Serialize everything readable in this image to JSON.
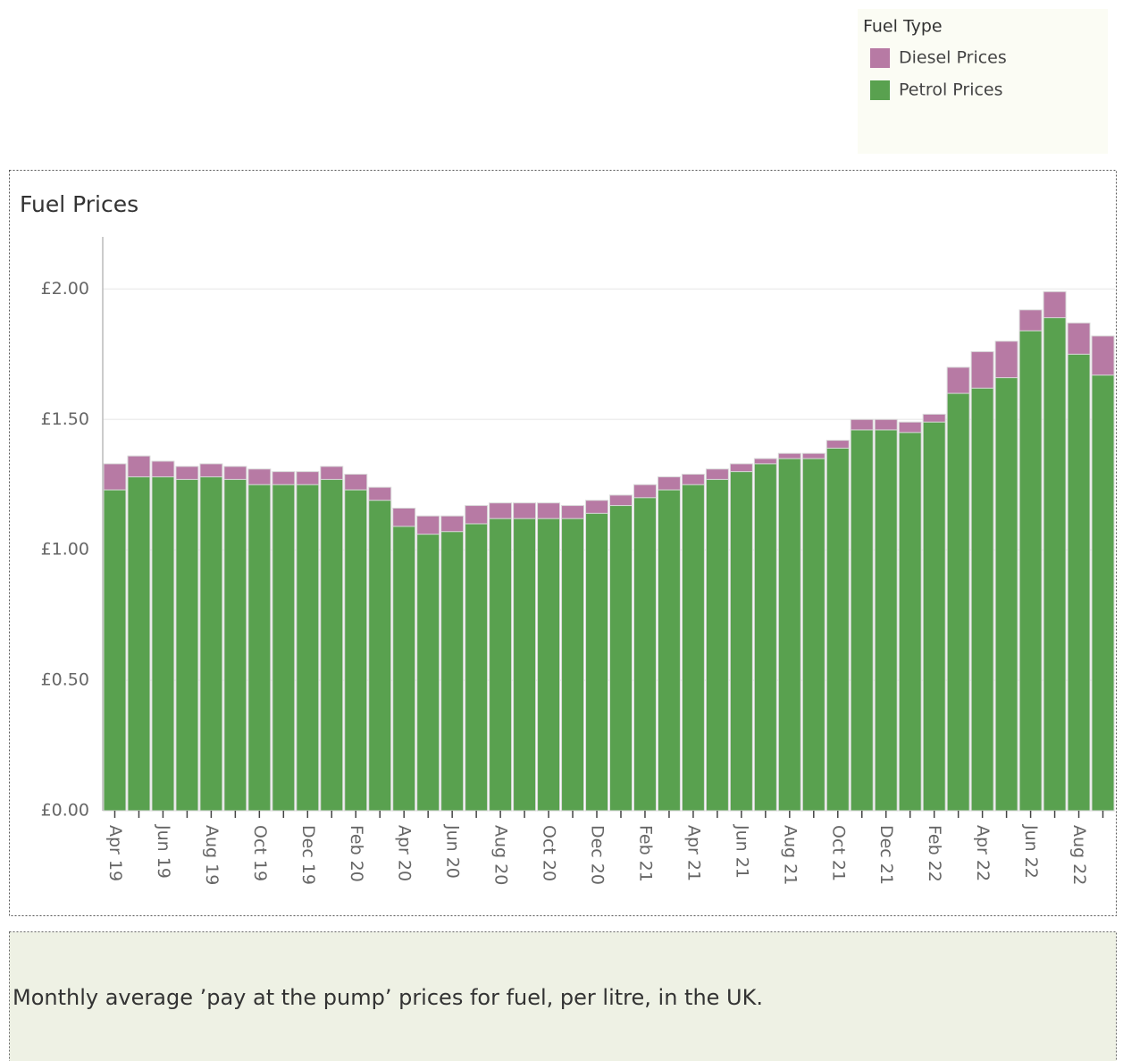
{
  "chart_data": {
    "type": "bar",
    "title": "Fuel Prices",
    "legend_title": "Fuel Type",
    "caption": "Monthly average ’pay at the pump’ prices for fuel, per litre, in the UK.",
    "categories": [
      "Apr 19",
      null,
      "Jun 19",
      null,
      "Aug 19",
      null,
      "Oct 19",
      null,
      "Dec 19",
      null,
      "Feb 20",
      null,
      "Apr 20",
      null,
      "Jun 20",
      null,
      "Aug 20",
      null,
      "Oct 20",
      null,
      "Dec 20",
      null,
      "Feb 21",
      null,
      "Apr 21",
      null,
      "Jun 21",
      null,
      "Aug 21",
      null,
      "Oct 21",
      null,
      "Dec 21",
      null,
      "Feb 22",
      null,
      "Apr 22",
      null,
      "Jun 22",
      null,
      "Aug 22",
      null
    ],
    "series": [
      {
        "name": "Diesel Prices",
        "color": "#b77aa4",
        "values": [
          1.33,
          1.36,
          1.34,
          1.32,
          1.33,
          1.32,
          1.31,
          1.3,
          1.3,
          1.32,
          1.29,
          1.24,
          1.16,
          1.13,
          1.13,
          1.17,
          1.18,
          1.18,
          1.18,
          1.17,
          1.19,
          1.21,
          1.25,
          1.28,
          1.29,
          1.31,
          1.33,
          1.35,
          1.37,
          1.37,
          1.42,
          1.5,
          1.5,
          1.49,
          1.52,
          1.7,
          1.76,
          1.8,
          1.92,
          1.99,
          1.87,
          1.82
        ]
      },
      {
        "name": "Petrol Prices",
        "color": "#59a14f",
        "values": [
          1.23,
          1.28,
          1.28,
          1.27,
          1.28,
          1.27,
          1.25,
          1.25,
          1.25,
          1.27,
          1.23,
          1.19,
          1.09,
          1.06,
          1.07,
          1.1,
          1.12,
          1.12,
          1.12,
          1.12,
          1.14,
          1.17,
          1.2,
          1.23,
          1.25,
          1.27,
          1.3,
          1.33,
          1.35,
          1.35,
          1.39,
          1.46,
          1.46,
          1.45,
          1.49,
          1.6,
          1.62,
          1.66,
          1.84,
          1.89,
          1.75,
          1.67
        ]
      }
    ],
    "ylim": [
      0,
      2.2
    ],
    "yticks": [
      {
        "value": 0,
        "label": "£0.00"
      },
      {
        "value": 0.5,
        "label": "£0.50"
      },
      {
        "value": 1,
        "label": "£1.00"
      },
      {
        "value": 1.5,
        "label": "£1.50"
      },
      {
        "value": 2,
        "label": "£2.00"
      }
    ],
    "grid": true,
    "legend": "top-right"
  }
}
